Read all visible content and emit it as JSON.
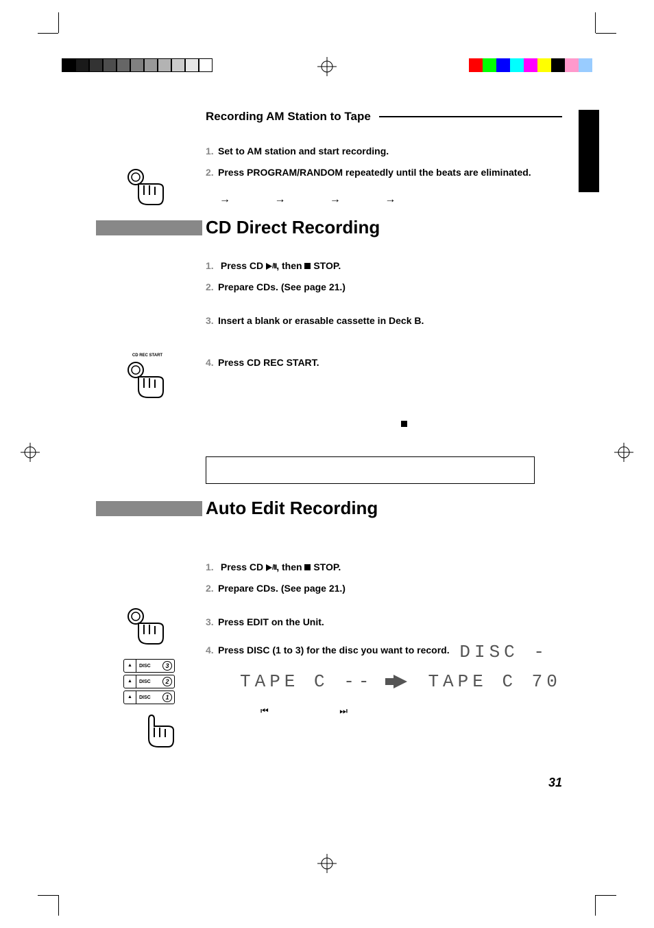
{
  "page_number": "31",
  "color_bars": {
    "left_grays": [
      "#000000",
      "#1a1a1a",
      "#333333",
      "#4d4d4d",
      "#666666",
      "#808080",
      "#999999",
      "#b3b3b3",
      "#cccccc",
      "#e6e6e6",
      "#ffffff"
    ],
    "right_colors": [
      "#ff0000",
      "#00ff00",
      "#0000ff",
      "#00ffff",
      "#ff00ff",
      "#ffff00",
      "#000000",
      "#ff99cc",
      "#99ccff"
    ]
  },
  "section_am": {
    "title": "Recording AM Station to Tape",
    "steps": [
      {
        "num": "1.",
        "text": "Set to AM station and start recording."
      },
      {
        "num": "2.",
        "text": "Press PROGRAM/RANDOM repeatedly until the beats are eliminated."
      }
    ],
    "arrows": "→   →   →   →"
  },
  "section_cd": {
    "heading": "CD Direct Recording",
    "steps_a": [
      {
        "num": "1.",
        "pre": "Press CD ",
        "suf": ", then ",
        "suf2": " STOP."
      },
      {
        "num": "2.",
        "text": "Prepare CDs. (See page 21.)"
      },
      {
        "num": "3.",
        "text": "Insert a blank or erasable cassette in Deck B."
      }
    ],
    "step4": {
      "num": "4.",
      "text": "Press CD REC START."
    }
  },
  "section_auto": {
    "heading": "Auto Edit Recording",
    "steps": [
      {
        "num": "1.",
        "pre": "Press CD ",
        "suf": ", then ",
        "suf2": " STOP."
      },
      {
        "num": "2.",
        "text": "Prepare CDs. (See page 21.)"
      },
      {
        "num": "3.",
        "text": "Press EDIT on the Unit."
      },
      {
        "num": "4.",
        "text": "Press DISC (1 to 3) for the disc you want to record."
      }
    ],
    "lcd_disc": "DISC -",
    "lcd_tape1": "TAPE  C --",
    "lcd_tape2": "TAPE  C 70",
    "skip_icons": "⏮          ⏭"
  },
  "disc_buttons": [
    {
      "n": "3",
      "label": "DISC"
    },
    {
      "n": "2",
      "label": "DISC"
    },
    {
      "n": "1",
      "label": "DISC"
    }
  ],
  "hand_label": "CD REC START"
}
